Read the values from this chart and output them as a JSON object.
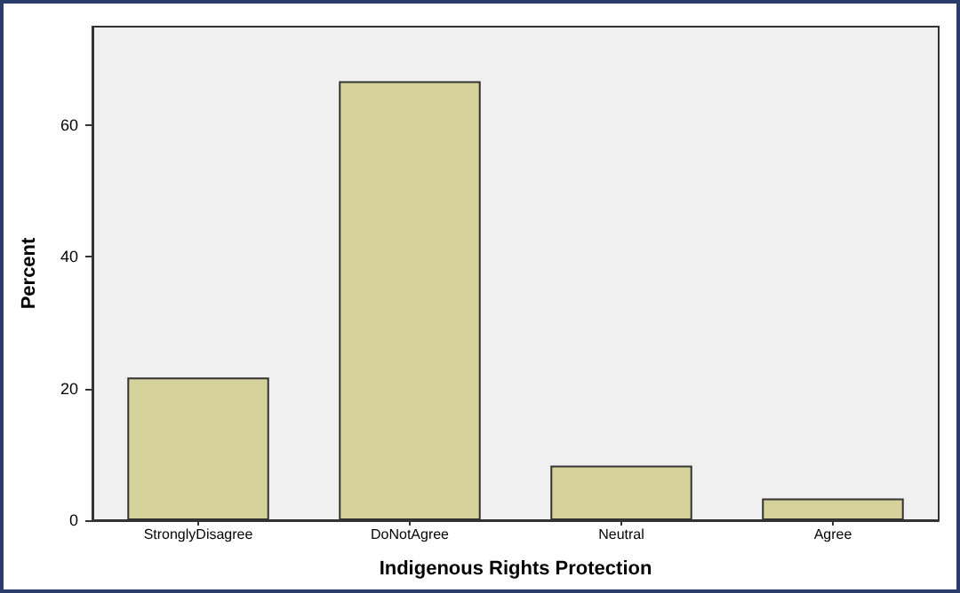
{
  "chart_data": {
    "type": "bar",
    "xlabel": "Indigenous Rights Protection",
    "ylabel": "Percent",
    "categories": [
      "StronglyDisagree",
      "DoNotAgree",
      "Neutral",
      "Agree"
    ],
    "values": [
      21.7,
      66.7,
      8.3,
      3.3
    ],
    "color": "#d4d29a",
    "ylim": [
      0,
      75
    ],
    "yticks": [
      0,
      20,
      40,
      60
    ],
    "grid": false
  }
}
